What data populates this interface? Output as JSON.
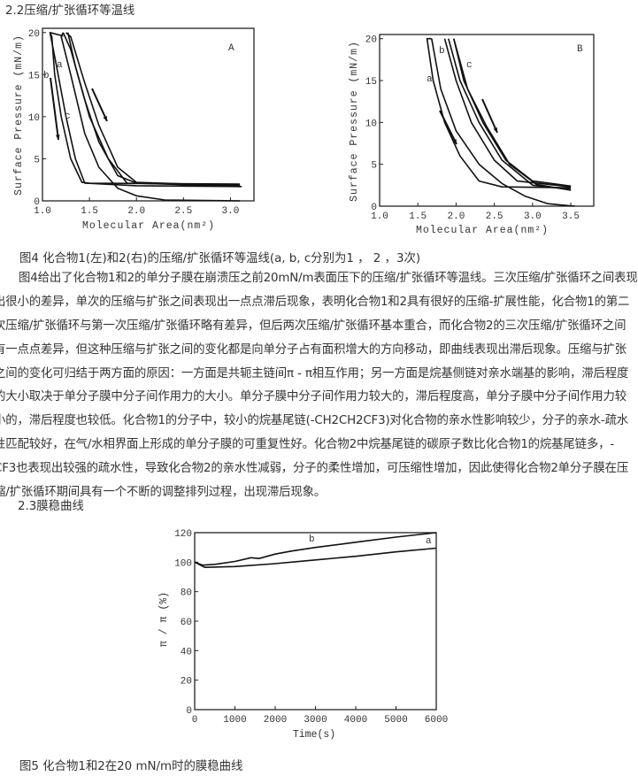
{
  "section_2_2": "2.2压缩/扩张循环等温线",
  "fig4_caption": "图4 化合物1(左)和2(右)的压缩/扩张循环等温线(a, b, c分别为1 ， 2 ，3次)",
  "paragraph": [
    "图4给出了化合物1和2的单分子膜在崩溃压之前20mN/m表面压下的压缩/扩张循环等温线。三次压缩/扩张循环之间表现",
    "出很小的差异，单次的压缩与扩张之间表现出一点点滞后现象，表明化合物1和2具有很好的压缩-扩展性能，化合物1的第二",
    "次压缩/扩张循环与第一次压缩/扩张循环略有差异，但后两次压缩/扩张循环基本重合，而化合物2的三次压缩/扩张循环之间",
    "有一点点差异，但这种压缩与扩张之间的变化都是向单分子占有面积增大的方向移动，即曲线表现出滞后现象。压缩与扩张",
    "之间的变化可归结于两方面的原因：一方面是共轭主链间π - π相互作用；另一方面是烷基侧链对亲水端基的影响，滞后程度",
    "的大小取决于单分子膜中分子间作用力的大小。单分子膜中分子间作用力较大的，滞后程度高，单分子膜中分子间作用力较",
    "小的，滞后程度也较低。化合物1的分子中，较小的烷基尾链(-CH2CH2CF3)对化合物的亲水性影响较少，分子的亲水-疏水",
    "性匹配较好，在气/水相界面上形成的单分子膜的可重复性好。化合物2中烷基尾链的碳原子数比化合物1的烷基尾链多，-",
    "CF3也表现出较强的疏水性，导致化合物2的亲水性减弱，分子的柔性增加，可压缩性增加，因此使得化合物2单分子膜在压",
    "缩/扩张循环期间具有一个不断的调整排列过程，出现滞后现象。"
  ],
  "section_2_3": "2.3膜稳曲线",
  "fig5_caption": "图5 化合物1和2在20 mN/m时的膜稳曲线",
  "chart_data": [
    {
      "type": "line",
      "panel": "A",
      "xlabel": "Molecular Area(nm²)",
      "ylabel": "Surface Pressure (mN/m)",
      "xlim": [
        1.0,
        3.25
      ],
      "ylim": [
        0,
        20.5
      ],
      "xticks": [
        "1.0",
        "1.5",
        "2.0",
        "2.5",
        "3.0"
      ],
      "yticks": [
        "0",
        "5",
        "10",
        "15",
        "20"
      ],
      "grid": false,
      "series": [
        {
          "name": "a",
          "compression": [
            [
              3.12,
              1.7
            ],
            [
              2.0,
              1.8
            ],
            [
              1.45,
              2.1
            ],
            [
              1.35,
              5
            ],
            [
              1.25,
              10
            ],
            [
              1.15,
              16
            ],
            [
              1.08,
              20
            ],
            [
              1.22,
              19.6
            ]
          ],
          "expansion": [
            [
              1.08,
              20
            ],
            [
              1.1,
              19.5
            ],
            [
              1.13,
              15
            ],
            [
              1.2,
              10
            ],
            [
              1.3,
              5
            ],
            [
              1.42,
              2.2
            ],
            [
              1.5,
              2.1
            ],
            [
              3.1,
              2.0
            ]
          ]
        },
        {
          "name": "b",
          "compression": [
            [
              3.1,
              1.7
            ],
            [
              2.0,
              2.1
            ],
            [
              1.8,
              3
            ],
            [
              1.6,
              7
            ],
            [
              1.45,
              12
            ],
            [
              1.3,
              18
            ],
            [
              1.22,
              20
            ]
          ],
          "expansion": [
            [
              1.22,
              20
            ],
            [
              1.2,
              19.5
            ],
            [
              1.3,
              15
            ],
            [
              1.45,
              8
            ],
            [
              1.6,
              4
            ],
            [
              1.8,
              1.5
            ],
            [
              2.0,
              0.6
            ],
            [
              2.3,
              0.1
            ],
            [
              3.1,
              0
            ]
          ]
        },
        {
          "name": "c",
          "compression": [
            [
              3.1,
              1.8
            ],
            [
              2.0,
              2.2
            ],
            [
              1.8,
              4
            ],
            [
              1.6,
              9
            ],
            [
              1.45,
              14
            ],
            [
              1.3,
              19.5
            ],
            [
              1.25,
              20
            ]
          ],
          "expansion": [
            [
              1.27,
              20
            ],
            [
              1.35,
              16
            ],
            [
              1.5,
              10
            ],
            [
              1.7,
              5
            ],
            [
              1.9,
              2.1
            ],
            [
              3.1,
              1.9
            ]
          ]
        }
      ]
    },
    {
      "type": "line",
      "panel": "B",
      "xlabel": "Molecular Area(nm²)",
      "ylabel": "Surface Pressure (mN/m)",
      "xlim": [
        1.0,
        3.8
      ],
      "ylim": [
        0,
        20.5
      ],
      "xticks": [
        "1.0",
        "1.5",
        "2.0",
        "2.5",
        "3.0",
        "3.5"
      ],
      "yticks": [
        "0",
        "5",
        "10",
        "15",
        "20"
      ],
      "grid": false,
      "series": [
        {
          "name": "a",
          "compression": [
            [
              3.5,
              2.2
            ],
            [
              2.6,
              2.3
            ],
            [
              2.3,
              3
            ],
            [
              2.05,
              6
            ],
            [
              1.85,
              10
            ],
            [
              1.7,
              15
            ],
            [
              1.62,
              20
            ],
            [
              1.68,
              20
            ]
          ],
          "expansion": [
            [
              1.68,
              20
            ],
            [
              1.8,
              14
            ],
            [
              2.0,
              9
            ],
            [
              2.3,
              5
            ],
            [
              2.6,
              2.7
            ],
            [
              2.9,
              1.2
            ],
            [
              3.2,
              0.3
            ],
            [
              3.55,
              0
            ]
          ]
        },
        {
          "name": "b",
          "compression": [
            [
              3.5,
              2.3
            ],
            [
              2.8,
              3
            ],
            [
              2.5,
              5.5
            ],
            [
              2.2,
              10
            ],
            [
              2.0,
              15
            ],
            [
              1.85,
              20
            ]
          ],
          "expansion": [
            [
              1.9,
              20
            ],
            [
              2.05,
              15
            ],
            [
              2.3,
              10
            ],
            [
              2.6,
              5.5
            ],
            [
              3.0,
              2.5
            ],
            [
              3.5,
              2
            ]
          ]
        },
        {
          "name": "c",
          "compression": [
            [
              3.5,
              2.4
            ],
            [
              3.0,
              3
            ],
            [
              2.65,
              5.5
            ],
            [
              2.35,
              10
            ],
            [
              2.1,
              15
            ],
            [
              1.97,
              20
            ]
          ],
          "expansion": [
            [
              1.97,
              20
            ],
            [
              2.15,
              14
            ],
            [
              2.4,
              9.5
            ],
            [
              2.7,
              5
            ],
            [
              3.05,
              2.6
            ],
            [
              3.5,
              1.9
            ]
          ]
        }
      ]
    },
    {
      "type": "line",
      "xlabel": "Time(s)",
      "ylabel": "π / π (%)",
      "xlim": [
        0,
        6000
      ],
      "ylim": [
        0,
        120
      ],
      "xticks": [
        "0",
        "1000",
        "2000",
        "3000",
        "4000",
        "5000",
        "6000"
      ],
      "yticks": [
        "0",
        "20",
        "40",
        "60",
        "80",
        "100",
        "120"
      ],
      "grid": false,
      "series": [
        {
          "name": "a",
          "values": [
            [
              0,
              100
            ],
            [
              250,
              96.5
            ],
            [
              1000,
              97
            ],
            [
              2000,
              99
            ],
            [
              3000,
              101.5
            ],
            [
              4000,
              104
            ],
            [
              5000,
              107
            ],
            [
              6000,
              109.5
            ]
          ]
        },
        {
          "name": "b",
          "values": [
            [
              0,
              100
            ],
            [
              200,
              98
            ],
            [
              500,
              98.5
            ],
            [
              1000,
              100.5
            ],
            [
              1400,
              103
            ],
            [
              1600,
              102.5
            ],
            [
              2000,
              105.5
            ],
            [
              2400,
              107.5
            ],
            [
              3000,
              110
            ],
            [
              4000,
              113.5
            ],
            [
              5000,
              117
            ],
            [
              6000,
              120
            ]
          ]
        }
      ]
    }
  ]
}
